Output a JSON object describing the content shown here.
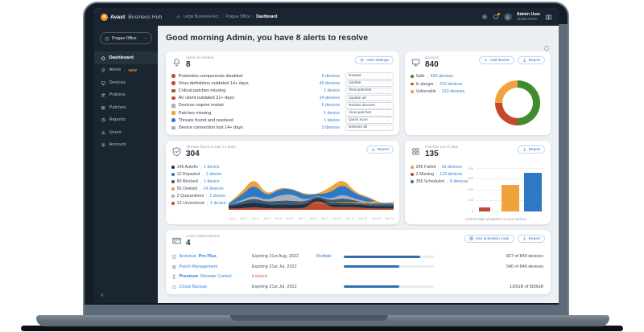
{
  "topbar": {
    "brand": {
      "name_bold": "Avast",
      "name_light": "Business Hub"
    },
    "breadcrumb": {
      "items": [
        "Large Business Acc.",
        "Prague Office",
        "Dashboard"
      ]
    },
    "user": {
      "name": "Admin User",
      "role": "Global Admin"
    }
  },
  "sidebar": {
    "org_selector": "Prague Office",
    "items": [
      {
        "label": "Dashboard",
        "icon": "home",
        "active": true
      },
      {
        "label": "Alerts",
        "icon": "bell",
        "badge": "NEW"
      },
      {
        "label": "Devices",
        "icon": "monitor"
      },
      {
        "label": "Policies",
        "icon": "sliders"
      },
      {
        "label": "Patches",
        "icon": "patch"
      },
      {
        "label": "Reports",
        "icon": "pie"
      },
      {
        "label": "Users",
        "icon": "person"
      },
      {
        "label": "Account",
        "icon": "gear"
      }
    ],
    "collapse_glyph": "«"
  },
  "page": {
    "greeting": "Good morning Admin, you have 8 alerts to resolve"
  },
  "alerts_card": {
    "title": "Alerts to resolve",
    "count": "8",
    "settings_button": "Alert settings",
    "rows": [
      {
        "label": "Protection components disabled",
        "severity": "critical",
        "shape": "circle",
        "color": "#c3492e",
        "devices": "6 devices",
        "action": "Restart"
      },
      {
        "label": "Virus definitions outdated 14+ days",
        "severity": "critical",
        "shape": "circle",
        "color": "#c3492e",
        "devices": "45 devices",
        "action": "Update"
      },
      {
        "label": "Critical patches missing",
        "severity": "critical",
        "shape": "square",
        "color": "#c3492e",
        "devices": "1 device",
        "action": "View patches"
      },
      {
        "label": "AV client outdated 21+ days",
        "severity": "critical",
        "shape": "circle",
        "color": "#c3492e",
        "devices": "14 devices",
        "action": "Update all"
      },
      {
        "label": "Devices require restart",
        "severity": "device",
        "shape": "laptop",
        "color": "#a7b2bc",
        "devices": "6 devices",
        "action": "Restart devices"
      },
      {
        "label": "Patches missing",
        "severity": "warning",
        "shape": "square",
        "color": "#f0a23d",
        "devices": "1 device",
        "action": "View patches"
      },
      {
        "label": "Threats found and resolved",
        "severity": "info",
        "shape": "circle",
        "color": "#2f79c4",
        "devices": "1 device",
        "action": "Quick scan"
      },
      {
        "label": "Device connection lost 14+ days",
        "severity": "device",
        "shape": "laptop",
        "color": "#a7b2bc",
        "devices": "3 devices",
        "action": "Dismiss all"
      }
    ]
  },
  "devices_card": {
    "title": "Devices",
    "count": "840",
    "add_button": "Add device",
    "report_button": "Report",
    "legend": [
      {
        "label": "Safe",
        "link": "420 devices",
        "color": "#418a2f"
      },
      {
        "label": "In danger",
        "link": "210 devices",
        "color": "#c3492e"
      },
      {
        "label": "Vulnerable",
        "link": "210 devices",
        "color": "#f0a23d"
      }
    ]
  },
  "threats_card": {
    "title": "Threats found in last 14 days",
    "count": "304",
    "report_button": "Report",
    "legend": [
      {
        "count": "145",
        "label": "Autofix",
        "link": "1 device",
        "color": "#22313f"
      },
      {
        "count": "12",
        "label": "Repaired",
        "link": "1 device",
        "color": "#2f79c4"
      },
      {
        "count": "89",
        "label": "Blocked",
        "link": "1 device",
        "color": "#3f5a74"
      },
      {
        "count": "56",
        "label": "Deleted",
        "link": "14 devices",
        "color": "#f0a23d"
      },
      {
        "count": "2",
        "label": "Quarantined",
        "link": "1 device",
        "color": "#a7b2bc"
      },
      {
        "count": "13",
        "label": "Unresolved",
        "link": "1 device",
        "color": "#c3492e"
      }
    ]
  },
  "patches_card": {
    "title": "Patches out of date",
    "count": "135",
    "report_button": "Report",
    "legend": [
      {
        "count": "245",
        "label": "Failed",
        "link": "16 devices",
        "color": "#f0a23d"
      },
      {
        "count": "2",
        "label": "Missing",
        "link": "123 devices",
        "color": "#c3492e"
      },
      {
        "count": "356",
        "label": "Scheduled",
        "link": "6 devices",
        "color": "#2f79c4"
      }
    ],
    "caption": "Current state of patches on your devices"
  },
  "subscriptions_card": {
    "title": "Active subscriptions",
    "count": "4",
    "activation_button": "Use activation code",
    "report_button": "Report",
    "rows": [
      {
        "icon": "shield",
        "name_parts": [
          {
            "t": "Antivirus ",
            "b": false
          },
          {
            "t": "Pro Plus",
            "b": true
          }
        ],
        "expiry": "Expiring 21st Aug, 2022",
        "expired": false,
        "extra": "Multiple",
        "progress": 0.85,
        "usage": "827 of 840 devices"
      },
      {
        "icon": "patch",
        "name_parts": [
          {
            "t": "Patch Management",
            "b": false
          }
        ],
        "expiry": "Expiring 21st Jul, 2022",
        "expired": false,
        "extra": "",
        "progress": 0.62,
        "usage": "540 of 840 devices"
      },
      {
        "icon": "remote",
        "name_parts": [
          {
            "t": "Premium",
            "b": true
          },
          {
            "t": " Remote Control",
            "b": false
          }
        ],
        "expiry": "Expired",
        "expired": true,
        "extra": "",
        "progress": null,
        "usage": ""
      },
      {
        "icon": "cloud",
        "name_parts": [
          {
            "t": "Cloud Backup",
            "b": false
          }
        ],
        "expiry": "Expiring 21st Jul, 2022",
        "expired": false,
        "extra": "",
        "progress": 0.62,
        "usage": "120GB of 500GB"
      }
    ]
  },
  "chart_data": [
    {
      "id": "devices-status-donut",
      "type": "pie",
      "donut": true,
      "title": "Devices",
      "total": 840,
      "labels": [
        "Safe",
        "In danger",
        "Vulnerable"
      ],
      "values": [
        420,
        210,
        210
      ],
      "colors": [
        "#418a2f",
        "#c3492e",
        "#f0a23d"
      ],
      "legend_position": "left"
    },
    {
      "id": "threats-14d-stacked-area",
      "type": "area",
      "stacked": true,
      "title": "Threats found in last 14 days",
      "total_shown": 304,
      "x": [
        "Jun 1",
        "Jun 2",
        "Jun 3",
        "Jun 4",
        "Jun 5",
        "Jun 6",
        "Jun 7",
        "Jun 8",
        "Jun 9",
        "Jun 10",
        "Jun 11",
        "Jun 12",
        "Jun 13",
        "Jun 14"
      ],
      "y_axis": "hidden",
      "series": [
        {
          "name": "Autofix",
          "total": 145,
          "color": "#22313f",
          "values_est": [
            2,
            3,
            4,
            3,
            3,
            3,
            3,
            2,
            3,
            4,
            3,
            2,
            2,
            2
          ]
        },
        {
          "name": "Repaired",
          "total": 12,
          "color": "#2f79c4",
          "values_est": [
            1,
            4,
            9,
            3,
            5,
            4,
            4,
            1,
            5,
            8,
            4,
            3,
            1,
            1
          ]
        },
        {
          "name": "Blocked",
          "total": 89,
          "color": "#3f5a74",
          "values_est": [
            1,
            2,
            3,
            2,
            3,
            3,
            2,
            1,
            2,
            3,
            2,
            2,
            1,
            1
          ]
        },
        {
          "name": "Deleted",
          "total": 56,
          "color": "#f0a23d",
          "values_est": [
            0,
            2,
            5,
            1,
            1,
            0,
            1,
            0,
            4,
            4,
            1,
            1,
            0,
            1
          ]
        },
        {
          "name": "Quarantined",
          "total": 2,
          "color": "#a7b2bc",
          "values_est": [
            0,
            1,
            2,
            1,
            4,
            5,
            1,
            0,
            1,
            3,
            1,
            1,
            0,
            0
          ]
        },
        {
          "name": "Unresolved",
          "total": 13,
          "color": "#c3492e",
          "values_est": [
            1,
            1,
            2,
            1,
            1,
            1,
            1,
            8,
            2,
            2,
            2,
            1,
            1,
            1
          ]
        }
      ],
      "stack_order": [
        "Unresolved",
        "Autofix",
        "Blocked",
        "Quarantined",
        "Repaired",
        "Deleted"
      ]
    },
    {
      "id": "patches-state-bar",
      "type": "bar",
      "categories": [
        "Missing",
        "Failed",
        "Scheduled"
      ],
      "values": [
        2,
        245,
        356
      ],
      "colors": [
        "#c3492e",
        "#f0a23d",
        "#2f79c4"
      ],
      "ylim": [
        0,
        400
      ],
      "yticks": [
        0,
        100,
        200,
        300,
        400
      ],
      "xlabel": "Current state of patches on your devices",
      "ylabel": ""
    }
  ]
}
